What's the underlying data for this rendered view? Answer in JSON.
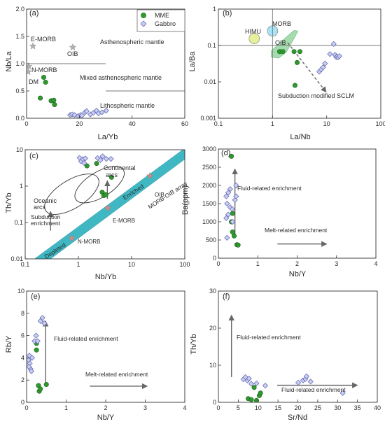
{
  "colors": {
    "mme_fill": "#2e9a2e",
    "mme_stroke": "#1b5e1b",
    "gabbro_fill": "#c9cdf0",
    "gabbro_stroke": "#5b63b0",
    "reference_star": "#b0b0b0",
    "mme_star": "#c88a8a",
    "morb_oib_band": "#3fb8c4",
    "oib_field": "#a5dcae",
    "himu_circle": "#e6ef9a",
    "morb_circle": "#a9e3f7",
    "arrow": "#666666",
    "line": "#777777"
  },
  "legend": {
    "mme": "MME",
    "gabbro": "Gabbro"
  },
  "chart_data": [
    {
      "id": "a",
      "type": "scatter",
      "panel_label": "(a)",
      "xlabel": "La/Yb",
      "ylabel": "Nb/La",
      "xscale": "linear",
      "yscale": "linear",
      "xlim": [
        0,
        60
      ],
      "ylim": [
        0,
        2.0
      ],
      "xticks": [
        0,
        20,
        40,
        60
      ],
      "yticks": [
        0.0,
        0.5,
        1.0,
        1.5,
        2.0
      ],
      "ytick_labels": [
        "0.0",
        "0.5",
        "1.0",
        "1.5",
        "2.0"
      ],
      "grid": false,
      "legend": "top-right",
      "series": [
        {
          "name": "MME",
          "marker": "circle",
          "points": [
            [
              6.5,
              0.75
            ],
            [
              7.2,
              0.66
            ],
            [
              5.2,
              0.37
            ],
            [
              9.3,
              0.32
            ],
            [
              10.3,
              0.33
            ],
            [
              10.6,
              0.25
            ]
          ]
        },
        {
          "name": "Gabbro",
          "marker": "diamond",
          "points": [
            [
              16.5,
              0.06
            ],
            [
              17.3,
              0.07
            ],
            [
              18.2,
              0.06
            ],
            [
              19.6,
              0.04
            ],
            [
              20.5,
              0.06
            ],
            [
              21.0,
              0.05
            ],
            [
              22.2,
              0.11
            ],
            [
              22.8,
              0.13
            ],
            [
              24.2,
              0.07
            ],
            [
              25.3,
              0.1
            ],
            [
              26.5,
              0.14
            ],
            [
              27.3,
              0.09
            ],
            [
              28.6,
              0.11
            ],
            [
              30.2,
              0.14
            ]
          ]
        }
      ],
      "reference_points": [
        {
          "label": "E-MORB",
          "x": 2.4,
          "y": 1.32
        },
        {
          "label": "OIB",
          "x": 17.5,
          "y": 1.3
        },
        {
          "label": "N-MORB",
          "x": 0.8,
          "y": 0.95
        },
        {
          "label": "DM",
          "x": 0.6,
          "y": 0.85
        }
      ],
      "lines": [
        {
          "points": [
            [
              0,
              1.0
            ],
            [
              30,
              1.0
            ]
          ]
        },
        {
          "points": [
            [
              30,
              0.5
            ],
            [
              60,
              0.5
            ]
          ]
        }
      ],
      "annotations": [
        {
          "text": "Asthenospheric mantle",
          "x": 33,
          "y": 1.47
        },
        {
          "text": "Mixed asthenospheric mantle",
          "x": 24,
          "y": 0.79
        },
        {
          "text": "Lithospheric mantle",
          "x": 33,
          "y": 0.23
        }
      ]
    },
    {
      "id": "b",
      "type": "scatter",
      "panel_label": "(b)",
      "xlabel": "La/Nb",
      "ylabel": "La/Ba",
      "xscale": "log",
      "yscale": "log",
      "xlim": [
        0.1,
        100
      ],
      "ylim": [
        0.001,
        1
      ],
      "xticks": [
        0.1,
        1,
        10,
        100
      ],
      "xtick_labels": [
        "0.1",
        "1",
        "10",
        "100"
      ],
      "yticks": [
        0.001,
        0.01,
        0.1,
        1
      ],
      "ytick_labels": [
        "0.001",
        "0.01",
        "0.1",
        "1"
      ],
      "grid": false,
      "series": [
        {
          "name": "MME",
          "marker": "circle",
          "points": [
            [
              1.35,
              0.068
            ],
            [
              1.55,
              0.068
            ],
            [
              2.5,
              0.068
            ],
            [
              3.2,
              0.068
            ],
            [
              2.85,
              0.034
            ],
            [
              2.6,
              0.008
            ]
          ]
        },
        {
          "name": "Gabbro",
          "marker": "diamond",
          "points": [
            [
              7.3,
              0.019
            ],
            [
              7.9,
              0.022
            ],
            [
              8.6,
              0.025
            ],
            [
              9.3,
              0.032
            ],
            [
              13.5,
              0.11
            ],
            [
              14.3,
              0.055
            ],
            [
              15.0,
              0.048
            ],
            [
              15.6,
              0.05
            ],
            [
              16.3,
              0.047
            ],
            [
              17.2,
              0.051
            ],
            [
              11.5,
              0.058
            ]
          ]
        }
      ],
      "lines": [
        {
          "points": [
            [
              1,
              0.001
            ],
            [
              1,
              1
            ]
          ]
        },
        {
          "points": [
            [
              0.1,
              0.1
            ],
            [
              100,
              0.1
            ]
          ]
        }
      ],
      "fields": [
        {
          "label": "OIB",
          "kind": "polygon",
          "points": [
            [
              0.95,
              0.072
            ],
            [
              1.3,
              0.11
            ],
            [
              1.8,
              0.17
            ],
            [
              2.5,
              0.26
            ],
            [
              2.95,
              0.25
            ],
            [
              2.4,
              0.14
            ],
            [
              1.8,
              0.066
            ],
            [
              1.3,
              0.045
            ],
            [
              0.95,
              0.048
            ]
          ]
        },
        {
          "label": "HIMU",
          "kind": "circle",
          "x": 0.46,
          "y": 0.155
        },
        {
          "label": "MORB",
          "kind": "circle",
          "x": 1.0,
          "y": 0.25
        }
      ],
      "arrows": [
        {
          "label": "Subduction modified SCLM",
          "from": [
            1.9,
            0.12
          ],
          "to": [
            9.8,
            0.0052
          ],
          "style": "dashed"
        }
      ]
    },
    {
      "id": "c",
      "type": "scatter",
      "panel_label": "(c)",
      "xlabel": "Nb/Yb",
      "ylabel": "Th/Yb",
      "xscale": "log",
      "yscale": "log",
      "xlim": [
        0.1,
        100
      ],
      "ylim": [
        0.01,
        10
      ],
      "xticks": [
        0.1,
        1,
        10,
        100
      ],
      "xtick_labels": [
        "0.1",
        "1",
        "10",
        "100"
      ],
      "yticks": [
        0.01,
        0.1,
        1,
        10
      ],
      "ytick_labels": [
        "0.01",
        "0.1",
        "1",
        "10"
      ],
      "grid": false,
      "series": [
        {
          "name": "MME",
          "marker": "circle",
          "points": [
            [
              1.45,
              3.6
            ],
            [
              2.2,
              4.2
            ],
            [
              2.8,
              0.68
            ],
            [
              3.0,
              0.55
            ],
            [
              3.3,
              0.58
            ],
            [
              4.2,
              1.75
            ]
          ]
        },
        {
          "name": "Gabbro",
          "marker": "diamond",
          "points": [
            [
              1.05,
              6.0
            ],
            [
              1.12,
              4.8
            ],
            [
              1.22,
              5.5
            ],
            [
              1.28,
              4.3
            ],
            [
              1.35,
              5.8
            ],
            [
              2.3,
              5.9
            ],
            [
              2.6,
              5.2
            ],
            [
              2.85,
              6.6
            ],
            [
              3.35,
              5.6
            ],
            [
              4.1,
              5.6
            ]
          ]
        }
      ],
      "reference_points": [
        {
          "label": "N-MORB",
          "x": 0.75,
          "y": 0.037
        },
        {
          "label": "E-MORB",
          "x": 3.6,
          "y": 0.25
        },
        {
          "label": "OIB",
          "x": 22,
          "y": 1.9
        }
      ],
      "fields": [
        {
          "label": "MORB-OIB array",
          "kind": "band",
          "points": [
            [
              0.15,
              0.01
            ],
            [
              100,
              11
            ],
            [
              100,
              5.5
            ],
            [
              0.3,
              0.01
            ]
          ]
        },
        {
          "label": "Oceanic arcs",
          "kind": "ellipse",
          "cx": 0.75,
          "cy": 0.6,
          "angle_deg": -32
        },
        {
          "label": "Continental arcs",
          "kind": "ellipse",
          "cx": 2.5,
          "cy": 1.1,
          "angle_deg": -32
        }
      ],
      "arrows": [
        {
          "label": "Subduction enrichment",
          "from": [
            0.3,
            0.06
          ],
          "to": [
            0.3,
            0.2
          ]
        },
        {
          "label": "",
          "from": [
            3.5,
            0.45
          ],
          "to": [
            3.5,
            1.4
          ]
        }
      ],
      "annotations": [
        {
          "text": "Continental",
          "x": 2.5,
          "y": 6.5
        },
        {
          "text": "arcs",
          "x": 3.0,
          "y": 4.2
        },
        {
          "text": "Oceanic",
          "x": 0.15,
          "y": 1.1
        },
        {
          "text": "arcs",
          "x": 0.16,
          "y": 0.73
        },
        {
          "text": "Subduction",
          "x": 0.13,
          "y": 0.25
        },
        {
          "text": "enrichment",
          "x": 0.13,
          "y": 0.17
        },
        {
          "text": "Enriched",
          "x": 3.6,
          "y": 0.97
        },
        {
          "text": "Depleted",
          "x": 0.2,
          "y": 0.013
        }
      ]
    },
    {
      "id": "d",
      "type": "scatter",
      "panel_label": "(d)",
      "xlabel": "Nb/Y",
      "ylabel": "Ba(ppm)",
      "xscale": "linear",
      "yscale": "linear",
      "xlim": [
        0,
        4
      ],
      "ylim": [
        0,
        3000
      ],
      "xticks": [
        0,
        1,
        2,
        3,
        4
      ],
      "yticks": [
        0,
        500,
        1000,
        1500,
        2000,
        2500,
        3000
      ],
      "grid": false,
      "series": [
        {
          "name": "MME",
          "marker": "circle",
          "points": [
            [
              0.33,
              2800
            ],
            [
              0.36,
              1230
            ],
            [
              0.33,
              1000
            ],
            [
              0.36,
              720
            ],
            [
              0.4,
              610
            ],
            [
              0.47,
              370
            ],
            [
              0.5,
              360
            ]
          ]
        },
        {
          "name": "Gabbro",
          "marker": "diamond",
          "points": [
            [
              0.2,
              1700
            ],
            [
              0.25,
              1800
            ],
            [
              0.3,
              1900
            ],
            [
              0.22,
              1500
            ],
            [
              0.3,
              1400
            ],
            [
              0.35,
              1350
            ],
            [
              0.25,
              1200
            ],
            [
              0.36,
              1000
            ],
            [
              0.2,
              1100
            ],
            [
              0.42,
              1600
            ],
            [
              0.45,
              1700
            ],
            [
              0.45,
              2000
            ],
            [
              0.22,
              560
            ]
          ]
        }
      ],
      "arrows": [
        {
          "label": "Fluid-related enrichment",
          "from": [
            0.42,
            650
          ],
          "to": [
            0.42,
            2450
          ]
        },
        {
          "label": "Melt-related enrichment",
          "from": [
            1.5,
            390
          ],
          "to": [
            2.75,
            390
          ]
        }
      ]
    },
    {
      "id": "e",
      "type": "scatter",
      "panel_label": "(e)",
      "xlabel": "Nb/Y",
      "ylabel": "Rb/Y",
      "xscale": "linear",
      "yscale": "linear",
      "xlim": [
        0,
        4
      ],
      "ylim": [
        0,
        10
      ],
      "xticks": [
        0,
        1,
        2,
        3,
        4
      ],
      "yticks": [
        0,
        2,
        4,
        6,
        8,
        10
      ],
      "grid": false,
      "series": [
        {
          "name": "MME",
          "marker": "circle",
          "points": [
            [
              0.25,
              5.3
            ],
            [
              0.25,
              4.7
            ],
            [
              0.3,
              1.5
            ],
            [
              0.32,
              1.0
            ],
            [
              0.35,
              1.2
            ],
            [
              0.5,
              1.6
            ]
          ]
        },
        {
          "name": "Gabbro",
          "marker": "diamond",
          "points": [
            [
              0.05,
              3.8
            ],
            [
              0.07,
              4.2
            ],
            [
              0.08,
              3.5
            ],
            [
              0.1,
              3.0
            ],
            [
              0.12,
              2.8
            ],
            [
              0.14,
              4.0
            ],
            [
              0.06,
              3.2
            ],
            [
              0.2,
              5.5
            ],
            [
              0.24,
              6.0
            ],
            [
              0.28,
              5.5
            ],
            [
              0.35,
              7.3
            ],
            [
              0.4,
              7.6
            ],
            [
              0.45,
              7.1
            ]
          ]
        }
      ],
      "arrows": [
        {
          "label": "Fluid-related enrichment",
          "from": [
            0.48,
            1.8
          ],
          "to": [
            0.48,
            7.3
          ]
        },
        {
          "label": "Melt-related enrichment",
          "from": [
            1.6,
            1.45
          ],
          "to": [
            3.05,
            1.45
          ]
        }
      ]
    },
    {
      "id": "f",
      "type": "scatter",
      "panel_label": "(f)",
      "xlabel": "Sr/Nd",
      "ylabel": "Th/Yb",
      "xscale": "linear",
      "yscale": "linear",
      "xlim": [
        0,
        40
      ],
      "ylim": [
        0,
        30
      ],
      "xticks": [
        0,
        5,
        10,
        15,
        20,
        25,
        30,
        35,
        40
      ],
      "yticks": [
        0,
        10,
        20,
        30
      ],
      "grid": false,
      "series": [
        {
          "name": "MME",
          "marker": "circle",
          "points": [
            [
              7.5,
              1.0
            ],
            [
              8.3,
              0.7
            ],
            [
              9.0,
              4.0
            ],
            [
              9.6,
              0.5
            ],
            [
              10.3,
              1.8
            ],
            [
              10.6,
              2.5
            ]
          ]
        },
        {
          "name": "Gabbro",
          "marker": "diamond",
          "points": [
            [
              6.3,
              6.2
            ],
            [
              6.8,
              6.8
            ],
            [
              7.3,
              5.9
            ],
            [
              7.7,
              6.4
            ],
            [
              8.3,
              5.0
            ],
            [
              9.6,
              5.1
            ],
            [
              11.8,
              4.5
            ],
            [
              20.1,
              5.3
            ],
            [
              21.3,
              5.9
            ],
            [
              21.9,
              6.3
            ],
            [
              22.2,
              7.0
            ],
            [
              23.2,
              5.6
            ],
            [
              31.3,
              2.5
            ]
          ]
        }
      ],
      "arrows": [
        {
          "label": "Fluid-related enrichment",
          "from": [
            3.3,
            6.8
          ],
          "to": [
            3.3,
            23.5
          ]
        },
        {
          "label": "Fluid-related enrichment",
          "from": [
            14.8,
            4.6
          ],
          "to": [
            35.0,
            4.6
          ]
        }
      ]
    }
  ]
}
